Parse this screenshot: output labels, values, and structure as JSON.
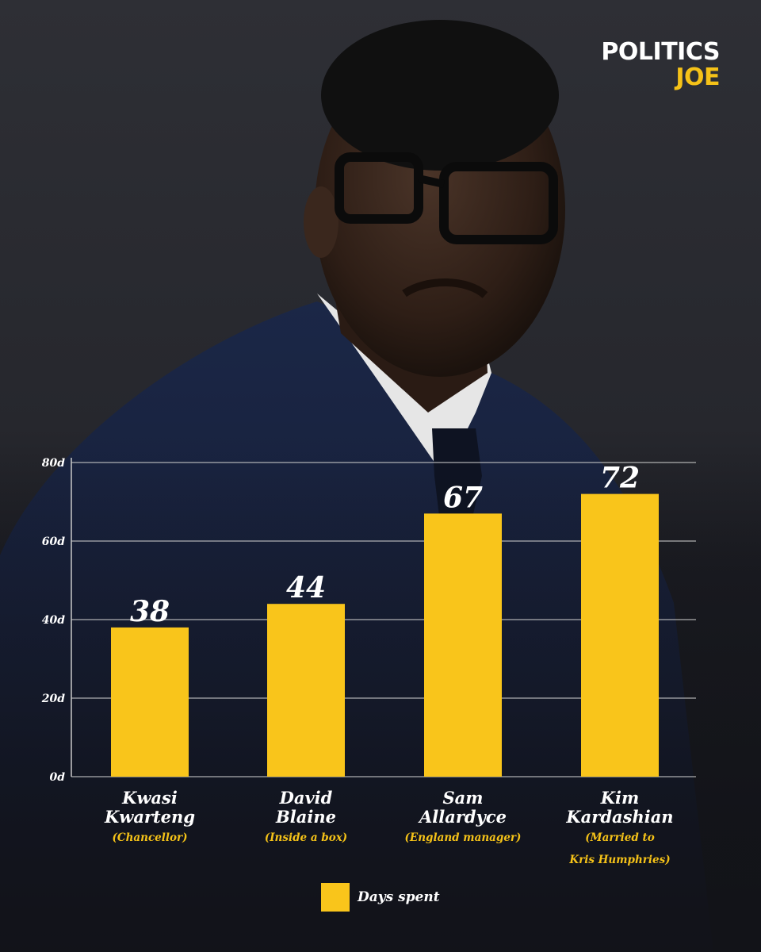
{
  "brand": {
    "line1": "POLITICS",
    "line2": "JOE"
  },
  "colors": {
    "bar": "#f9c51b",
    "accent": "#f5c218",
    "text": "#ffffff",
    "grid": "#c9c9c9"
  },
  "chart_data": {
    "type": "bar",
    "categories": [
      "Kwasi Kwarteng",
      "David Blaine",
      "Sam Allardyce",
      "Kim Kardashian"
    ],
    "category_lines": [
      [
        "Kwasi",
        "Kwarteng"
      ],
      [
        "David",
        "Blaine"
      ],
      [
        "Sam",
        "Allardyce"
      ],
      [
        "Kim",
        "Kardashian"
      ]
    ],
    "subtitles": [
      [
        "(Chancellor)"
      ],
      [
        "(Inside a box)"
      ],
      [
        "(England manager)"
      ],
      [
        "(Married to",
        "Kris Humphries)"
      ]
    ],
    "series": [
      {
        "name": "Days spent",
        "values": [
          38,
          44,
          67,
          72
        ]
      }
    ],
    "data_labels": [
      "38",
      "44",
      "67",
      "72"
    ],
    "yticks": [
      0,
      20,
      40,
      60,
      80
    ],
    "ytick_labels": [
      "0d",
      "20d",
      "40d",
      "60d",
      "80d"
    ],
    "ylim": [
      0,
      80
    ],
    "grid": true,
    "legend_position": "bottom-center"
  }
}
